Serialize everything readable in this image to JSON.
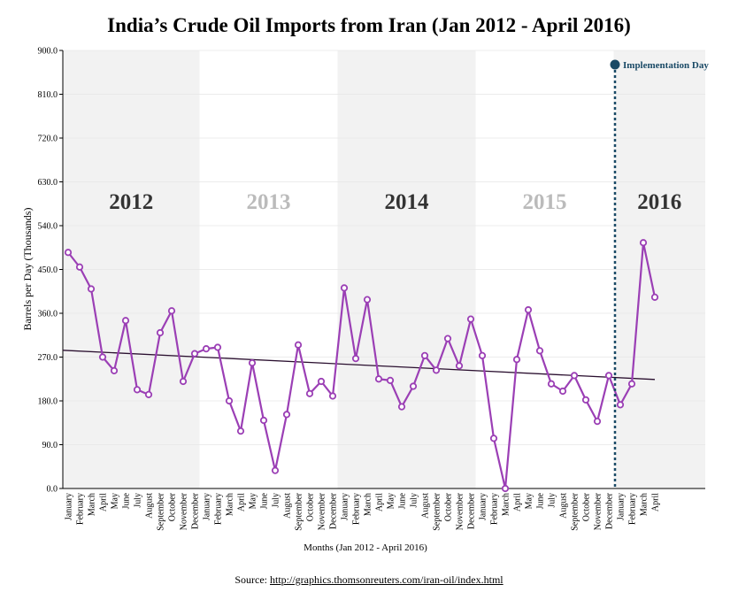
{
  "chart_data": {
    "type": "line",
    "title": "India’s Crude Oil Imports from Iran (Jan 2012 - April 2016)",
    "xlabel": "Months (Jan 2012 - April 2016)",
    "ylabel": "Barrels per Day (Thousands)",
    "ylim": [
      0,
      900
    ],
    "y_ticks": [
      "0.0",
      "90.0",
      "180.0",
      "270.0",
      "360.0",
      "450.0",
      "540.0",
      "630.0",
      "720.0",
      "810.0",
      "900.0"
    ],
    "grid": true,
    "series_color": "#9b3fb5",
    "trend_color": "#2a0f2f",
    "annotation_color": "#1a4a66",
    "year_shade_color": "#f2f2f2",
    "years": [
      {
        "label": "2012",
        "start": 0,
        "end": 11,
        "shaded": true,
        "label_color": "#333333"
      },
      {
        "label": "2013",
        "start": 12,
        "end": 23,
        "shaded": false,
        "label_color": "#bbbbbb"
      },
      {
        "label": "2014",
        "start": 24,
        "end": 35,
        "shaded": true,
        "label_color": "#333333"
      },
      {
        "label": "2015",
        "start": 36,
        "end": 47,
        "shaded": false,
        "label_color": "#bbbbbb"
      },
      {
        "label": "2016",
        "start": 48,
        "end": 51,
        "shaded": true,
        "label_color": "#333333"
      }
    ],
    "categories": [
      "January",
      "February",
      "March",
      "April",
      "May",
      "June",
      "July",
      "August",
      "September",
      "October",
      "November",
      "December",
      "January",
      "February",
      "March",
      "April",
      "May",
      "June",
      "July",
      "August",
      "September",
      "October",
      "November",
      "December",
      "January",
      "February",
      "March",
      "April",
      "May",
      "June",
      "July",
      "August",
      "September",
      "October",
      "November",
      "December",
      "January",
      "February",
      "March",
      "April",
      "May",
      "June",
      "July",
      "August",
      "September",
      "October",
      "November",
      "December",
      "January",
      "February",
      "March",
      "April"
    ],
    "values": [
      485,
      455,
      410,
      270,
      242,
      345,
      203,
      193,
      320,
      365,
      220,
      277,
      287,
      290,
      180,
      118,
      258,
      140,
      37,
      152,
      295,
      195,
      220,
      190,
      412,
      267,
      388,
      225,
      222,
      168,
      210,
      273,
      243,
      308,
      252,
      348,
      273,
      103,
      0,
      265,
      367,
      283,
      215,
      200,
      232,
      182,
      138,
      232,
      172,
      215,
      505,
      393
    ],
    "trend": {
      "start": 284,
      "end": 224
    },
    "annotation": {
      "label": "Implementation Day",
      "index": 48
    }
  },
  "source": {
    "prefix": "Source: ",
    "url_text": "http://graphics.thomsonreuters.com/iran-oil/index.html"
  }
}
